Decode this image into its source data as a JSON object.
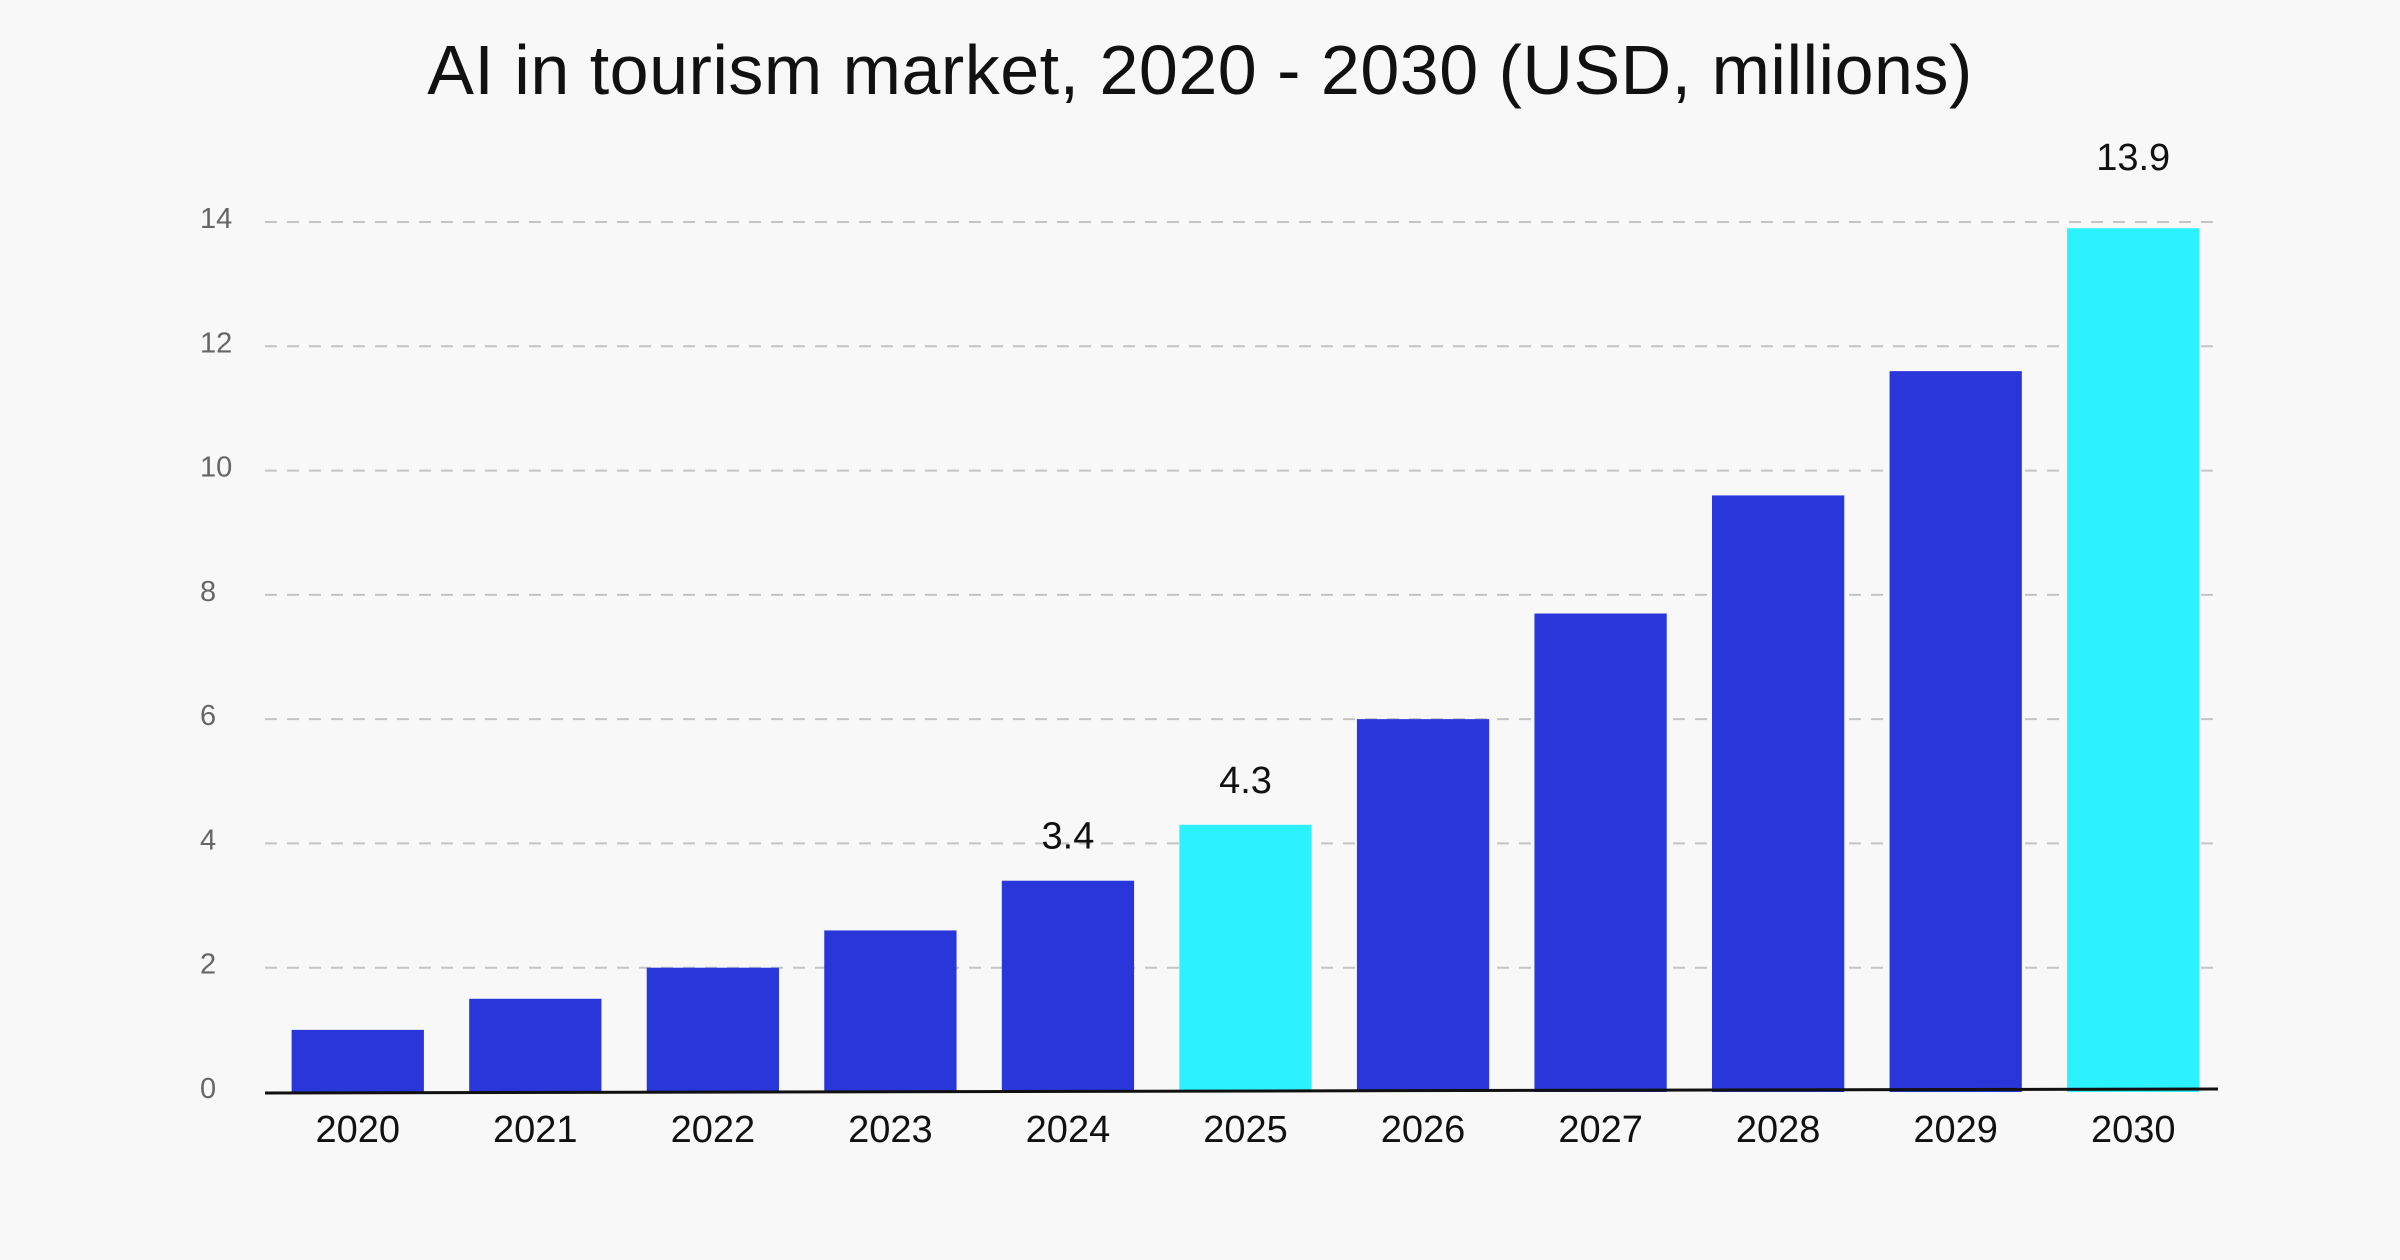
{
  "chart_data": {
    "type": "bar",
    "title": "AI in tourism market, 2020 - 2030 (USD, millions)",
    "xlabel": "",
    "ylabel": "",
    "ylim": [
      0,
      14
    ],
    "yticks": [
      0,
      2,
      4,
      6,
      8,
      10,
      12,
      14
    ],
    "grid": true,
    "categories": [
      "2020",
      "2021",
      "2022",
      "2023",
      "2024",
      "2025",
      "2026",
      "2027",
      "2028",
      "2029",
      "2030"
    ],
    "values": [
      1.0,
      1.5,
      2.0,
      2.6,
      3.4,
      4.3,
      6.0,
      7.7,
      9.6,
      11.6,
      13.9
    ],
    "highlighted": [
      "2025",
      "2030"
    ],
    "data_labels": [
      {
        "category": "2024",
        "text": "3.4"
      },
      {
        "category": "2025",
        "text": "4.3"
      },
      {
        "category": "2030",
        "text": "13.9"
      }
    ]
  },
  "colors": {
    "bar": "#2836da",
    "highlight": "#2cf2ff",
    "grid": "#c4c4c4",
    "axis": "#111111",
    "background": "#f8f8f8"
  }
}
